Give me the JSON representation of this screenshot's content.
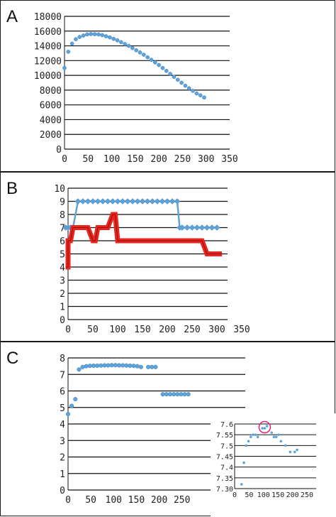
{
  "chart_data": [
    {
      "panel": "A",
      "type": "scatter",
      "xlim": [
        0,
        350
      ],
      "ylim": [
        0,
        18000
      ],
      "xticks": [
        0,
        50,
        100,
        150,
        200,
        250,
        300,
        350
      ],
      "yticks": [
        0,
        2000,
        4000,
        6000,
        8000,
        10000,
        12000,
        14000,
        16000,
        18000
      ],
      "grid": "horizontal",
      "color": "#5fa3d9",
      "series": [
        {
          "x": [
            0,
            8,
            16,
            24,
            32,
            40,
            48,
            56,
            64,
            72,
            80,
            88,
            96,
            104,
            112,
            120,
            128,
            136,
            144,
            152,
            160,
            168,
            176,
            184,
            192,
            200,
            208,
            216,
            224,
            232,
            240,
            248,
            256,
            264,
            272,
            280,
            288,
            296
          ],
          "y": [
            11000,
            13200,
            14300,
            14900,
            15200,
            15400,
            15550,
            15600,
            15580,
            15550,
            15450,
            15300,
            15150,
            14950,
            14750,
            14500,
            14250,
            14000,
            13700,
            13400,
            13100,
            12800,
            12450,
            12100,
            11750,
            11400,
            11000,
            10600,
            10200,
            9800,
            9400,
            9000,
            8600,
            8250,
            7900,
            7550,
            7300,
            7000
          ]
        }
      ]
    },
    {
      "panel": "B",
      "type": "line",
      "xlim": [
        0,
        350
      ],
      "ylim": [
        0,
        10
      ],
      "xticks": [
        0,
        50,
        100,
        150,
        200,
        250,
        300,
        350
      ],
      "yticks": [
        0,
        1,
        2,
        3,
        4,
        5,
        6,
        7,
        8,
        9,
        10
      ],
      "grid": "horizontal",
      "series": [
        {
          "color": "#5fa3d9",
          "x": [
            -5,
            0,
            5,
            10,
            20,
            30,
            40,
            50,
            60,
            70,
            80,
            90,
            100,
            110,
            120,
            130,
            140,
            150,
            160,
            170,
            180,
            190,
            200,
            210,
            220,
            225,
            230,
            240,
            250,
            260,
            270,
            280,
            290,
            300
          ],
          "y": [
            7,
            7,
            7,
            7,
            9,
            9,
            9,
            9,
            9,
            9,
            9,
            9,
            9,
            9,
            9,
            9,
            9,
            9,
            9,
            9,
            9,
            9,
            9,
            9,
            9,
            7,
            7,
            7,
            7,
            7,
            7,
            7,
            7,
            7
          ]
        },
        {
          "color": "#e8261f",
          "x": [
            -5,
            0,
            0,
            5,
            10,
            15,
            20,
            30,
            40,
            50,
            55,
            60,
            65,
            70,
            80,
            90,
            95,
            100,
            110,
            120,
            150,
            200,
            250,
            270,
            280,
            290,
            300,
            310
          ],
          "y": [
            4,
            4,
            6,
            6,
            7,
            7,
            7,
            7,
            7,
            6,
            6,
            7,
            7,
            7,
            7,
            8,
            8,
            6,
            6,
            6,
            6,
            6,
            6,
            6,
            5,
            5,
            5,
            5
          ]
        }
      ]
    },
    {
      "panel": "C",
      "type": "scatter",
      "xlim": [
        0,
        350
      ],
      "ylim": [
        0,
        8
      ],
      "xticks": [
        0,
        50,
        100,
        150,
        200,
        250
      ],
      "yticks": [
        0,
        1,
        2,
        3,
        4,
        5,
        6,
        7,
        8
      ],
      "grid": "horizontal",
      "color": "#5fa3d9",
      "series": [
        {
          "x": [
            0,
            8,
            16,
            24,
            32,
            40,
            48,
            56,
            64,
            72,
            80,
            88,
            96,
            104,
            112,
            120,
            128,
            136,
            144,
            152,
            160,
            176,
            184,
            192,
            208,
            216,
            224,
            232,
            240,
            248,
            256,
            264
          ],
          "y": [
            4.6,
            5.1,
            5.5,
            7.3,
            7.45,
            7.5,
            7.52,
            7.53,
            7.53,
            7.54,
            7.55,
            7.55,
            7.56,
            7.56,
            7.55,
            7.55,
            7.54,
            7.53,
            7.52,
            7.5,
            7.45,
            7.45,
            7.45,
            7.45,
            5.8,
            5.8,
            5.8,
            5.8,
            5.8,
            5.8,
            5.8,
            5.8
          ]
        }
      ],
      "inset": {
        "xlim": [
          0,
          250
        ],
        "ylim": [
          7.3,
          7.6
        ],
        "xticks": [
          0,
          50,
          100,
          150,
          200,
          250
        ],
        "yticks": [
          7.3,
          7.35,
          7.4,
          7.45,
          7.5,
          7.55,
          7.6
        ],
        "ytick_labels": [
          "7.30",
          "7.35",
          "7.4",
          "7.45",
          "7.5",
          "7.55",
          "7.6"
        ],
        "x": [
          24,
          32,
          40,
          48,
          56,
          64,
          72,
          80,
          96,
          104,
          112,
          128,
          136,
          144,
          152,
          160,
          176,
          192,
          208,
          216
        ],
        "y": [
          7.32,
          7.42,
          7.5,
          7.52,
          7.54,
          7.55,
          7.55,
          7.54,
          7.58,
          7.58,
          7.59,
          7.56,
          7.54,
          7.54,
          7.55,
          7.52,
          7.5,
          7.47,
          7.47,
          7.48
        ],
        "highlight": {
          "x": 104,
          "y": 7.585,
          "color": "#e0207a"
        }
      }
    }
  ],
  "labels": {
    "a": "A",
    "b": "B",
    "c": "C"
  }
}
